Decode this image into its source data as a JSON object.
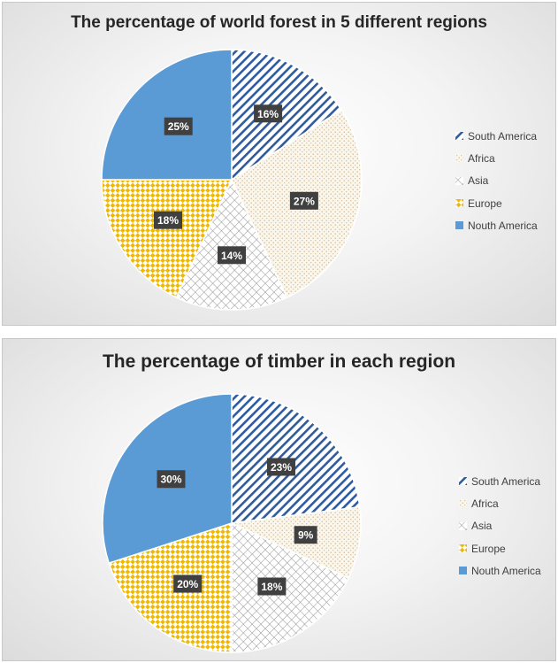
{
  "chart_data": [
    {
      "type": "pie",
      "title": "The percentage of world forest in 5 different regions",
      "categories": [
        "South America",
        "Africa",
        "Asia",
        "Europe",
        "Nouth America"
      ],
      "values": [
        16,
        27,
        14,
        18,
        25
      ],
      "value_labels": [
        "16%",
        "27%",
        "14%",
        "18%",
        "25%"
      ],
      "legend_position": "right"
    },
    {
      "type": "pie",
      "title": "The percentage of timber in each region",
      "categories": [
        "South America",
        "Africa",
        "Asia",
        "Europe",
        "Nouth America"
      ],
      "values": [
        23,
        9,
        18,
        20,
        30
      ],
      "value_labels": [
        "23%",
        "9%",
        "18%",
        "20%",
        "30%"
      ],
      "legend_position": "right"
    }
  ],
  "series_styles": [
    {
      "name": "South America",
      "pattern": "diagonal-stripes",
      "color": "#2e5a9e",
      "background": "#ffffff"
    },
    {
      "name": "Africa",
      "pattern": "dots",
      "color": "#c9b28a",
      "background": "#fbf6ec"
    },
    {
      "name": "Asia",
      "pattern": "crosshatch",
      "color": "#9a9a9a",
      "background": "#ffffff"
    },
    {
      "name": "Europe",
      "pattern": "checker-diamond",
      "color": "#f0b800",
      "background": "#ffffff"
    },
    {
      "name": "Nouth America",
      "pattern": "solid",
      "color": "#5b9bd5",
      "background": "#5b9bd5"
    }
  ]
}
